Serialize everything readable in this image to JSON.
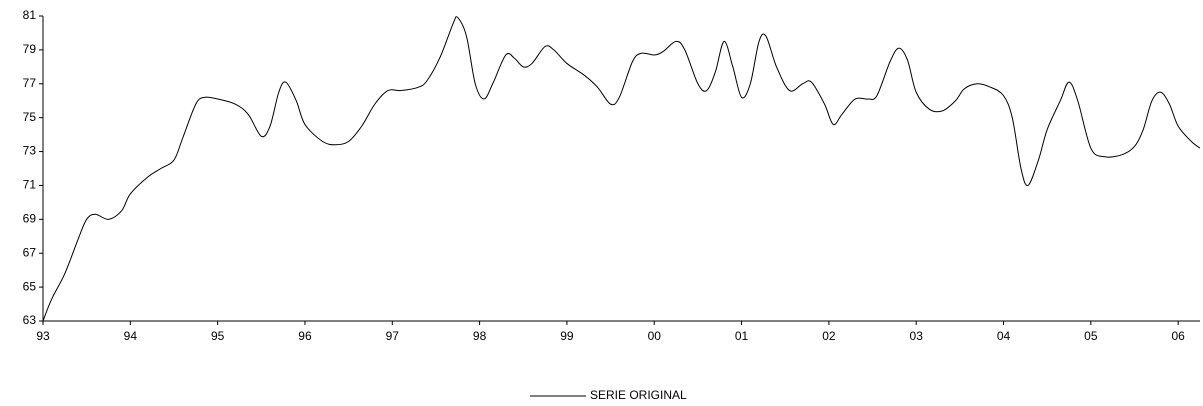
{
  "chart_data": {
    "type": "line",
    "x": [
      1993.0,
      1993.1,
      1993.25,
      1993.4,
      1993.5,
      1993.6,
      1993.75,
      1993.9,
      1994.0,
      1994.2,
      1994.35,
      1994.5,
      1994.6,
      1994.75,
      1994.85,
      1995.0,
      1995.2,
      1995.35,
      1995.5,
      1995.6,
      1995.7,
      1995.78,
      1995.9,
      1996.0,
      1996.2,
      1996.35,
      1996.5,
      1996.65,
      1996.8,
      1996.95,
      1997.1,
      1997.3,
      1997.4,
      1997.55,
      1997.7,
      1997.75,
      1997.85,
      1997.95,
      1998.05,
      1998.15,
      1998.3,
      1998.4,
      1998.5,
      1998.6,
      1998.75,
      1998.85,
      1999.0,
      1999.2,
      1999.35,
      1999.5,
      1999.6,
      1999.75,
      1999.85,
      2000.0,
      2000.1,
      2000.25,
      2000.35,
      2000.5,
      2000.6,
      2000.7,
      2000.8,
      2000.9,
      2001.0,
      2001.1,
      2001.2,
      2001.28,
      2001.4,
      2001.55,
      2001.7,
      2001.8,
      2001.95,
      2002.05,
      2002.15,
      2002.3,
      2002.45,
      2002.55,
      2002.7,
      2002.8,
      2002.9,
      2003.0,
      2003.15,
      2003.3,
      2003.45,
      2003.55,
      2003.7,
      2003.85,
      2004.0,
      2004.1,
      2004.2,
      2004.28,
      2004.4,
      2004.5,
      2004.65,
      2004.75,
      2004.85,
      2005.0,
      2005.15,
      2005.35,
      2005.5,
      2005.6,
      2005.7,
      2005.8,
      2005.9,
      2006.0,
      2006.15,
      2006.25
    ],
    "series": [
      {
        "name": "SERIE ORIGINAL",
        "color": "#000000",
        "values": [
          63.0,
          64.3,
          65.8,
          67.8,
          69.0,
          69.3,
          69.0,
          69.5,
          70.5,
          71.5,
          72.0,
          72.5,
          73.8,
          75.8,
          76.2,
          76.1,
          75.8,
          75.2,
          73.9,
          74.5,
          76.5,
          77.1,
          76.0,
          74.6,
          73.6,
          73.4,
          73.6,
          74.5,
          75.8,
          76.6,
          76.6,
          76.8,
          77.2,
          78.6,
          80.6,
          80.9,
          79.8,
          77.0,
          76.1,
          77.0,
          78.7,
          78.5,
          78.0,
          78.2,
          79.2,
          79.0,
          78.2,
          77.5,
          76.8,
          75.8,
          76.2,
          78.3,
          78.8,
          78.7,
          78.9,
          79.5,
          79.0,
          77.0,
          76.6,
          77.7,
          79.5,
          78.0,
          76.2,
          77.0,
          79.5,
          79.8,
          78.0,
          76.6,
          77.0,
          77.1,
          75.8,
          74.6,
          75.2,
          76.1,
          76.1,
          76.3,
          78.3,
          79.1,
          78.4,
          76.5,
          75.5,
          75.4,
          76.0,
          76.7,
          77.0,
          76.8,
          76.3,
          75.0,
          72.0,
          71.0,
          72.5,
          74.3,
          76.0,
          77.1,
          76.0,
          73.2,
          72.7,
          72.8,
          73.3,
          74.3,
          76.0,
          76.5,
          75.8,
          74.5,
          73.6,
          73.2
        ]
      }
    ],
    "xlim": [
      1993,
      2006.25
    ],
    "xticks": [
      {
        "value": 1993,
        "label": "93"
      },
      {
        "value": 1994,
        "label": "94"
      },
      {
        "value": 1995,
        "label": "95"
      },
      {
        "value": 1996,
        "label": "96"
      },
      {
        "value": 1997,
        "label": "97"
      },
      {
        "value": 1998,
        "label": "98"
      },
      {
        "value": 1999,
        "label": "99"
      },
      {
        "value": 2000,
        "label": "00"
      },
      {
        "value": 2001,
        "label": "01"
      },
      {
        "value": 2002,
        "label": "02"
      },
      {
        "value": 2003,
        "label": "03"
      },
      {
        "value": 2004,
        "label": "04"
      },
      {
        "value": 2005,
        "label": "05"
      },
      {
        "value": 2006,
        "label": "06"
      }
    ],
    "ylim": [
      63,
      81
    ],
    "yticks": [
      63,
      65,
      67,
      69,
      71,
      73,
      75,
      77,
      79,
      81
    ],
    "grid": false,
    "legend": "bottom"
  }
}
